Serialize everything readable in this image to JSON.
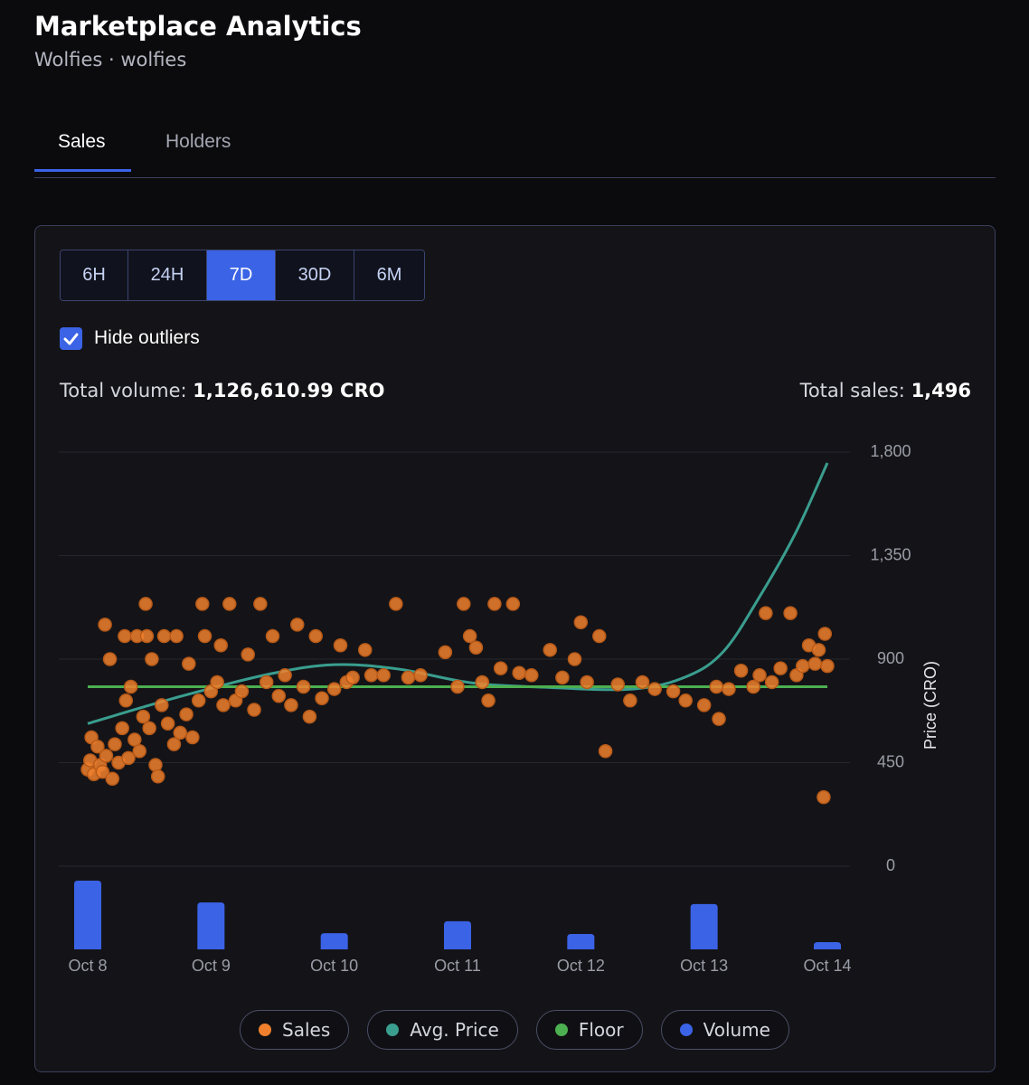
{
  "header": {
    "title": "Marketplace Analytics",
    "subtitle": "Wolfies · wolfies"
  },
  "tabs": {
    "items": [
      "Sales",
      "Holders"
    ],
    "selected": 0
  },
  "periods": {
    "items": [
      "6H",
      "24H",
      "7D",
      "30D",
      "6M"
    ],
    "selected": 2
  },
  "filter": {
    "label": "Hide outliers",
    "checked": true
  },
  "totals": {
    "volume_label": "Total volume:",
    "volume_value": "1,126,610.99 CRO",
    "sales_label": "Total sales:",
    "sales_value": "1,496"
  },
  "chart_data": {
    "type": "scatter",
    "y_label": "Price (CRO)",
    "xlim": [
      8,
      14
    ],
    "xticks": [
      {
        "value": 8,
        "label": "Oct 8"
      },
      {
        "value": 9,
        "label": "Oct 9"
      },
      {
        "value": 10,
        "label": "Oct 10"
      },
      {
        "value": 11,
        "label": "Oct 11"
      },
      {
        "value": 12,
        "label": "Oct 12"
      },
      {
        "value": 13,
        "label": "Oct 13"
      },
      {
        "value": 14,
        "label": "Oct 14"
      }
    ],
    "ylim": [
      0,
      1800
    ],
    "yticks": [
      0,
      450,
      900,
      {
        "value": 1350,
        "label": "1,350"
      },
      {
        "value": 1800,
        "label": "1,800"
      }
    ],
    "grid": true,
    "series": [
      {
        "name": "Sales",
        "type": "scatter",
        "color": "#f0802e",
        "x": [
          8,
          8.02,
          8.03,
          8.05,
          8.08,
          8.1,
          8.12,
          8.14,
          8.15,
          8.18,
          8.2,
          8.22,
          8.25,
          8.28,
          8.3,
          8.31,
          8.33,
          8.35,
          8.38,
          8.4,
          8.42,
          8.45,
          8.47,
          8.48,
          8.5,
          8.52,
          8.55,
          8.57,
          8.6,
          8.62,
          8.65,
          8.7,
          8.72,
          8.75,
          8.8,
          8.82,
          8.85,
          8.9,
          8.93,
          8.95,
          9,
          9.05,
          9.08,
          9.1,
          9.15,
          9.2,
          9.25,
          9.3,
          9.35,
          9.4,
          9.45,
          9.5,
          9.55,
          9.6,
          9.65,
          9.7,
          9.75,
          9.8,
          9.85,
          9.9,
          10,
          10.05,
          10.1,
          10.15,
          10.25,
          10.3,
          10.4,
          10.5,
          10.6,
          10.7,
          10.9,
          11,
          11.05,
          11.1,
          11.15,
          11.2,
          11.25,
          11.3,
          11.35,
          11.45,
          11.5,
          11.6,
          11.75,
          11.85,
          11.95,
          12,
          12.05,
          12.15,
          12.2,
          12.3,
          12.4,
          12.5,
          12.6,
          12.75,
          12.85,
          13,
          13.1,
          13.12,
          13.2,
          13.3,
          13.4,
          13.45,
          13.5,
          13.55,
          13.62,
          13.7,
          13.75,
          13.8,
          13.85,
          13.9,
          13.93,
          13.97,
          13.98,
          14
        ],
        "values": [
          420,
          460,
          560,
          400,
          520,
          440,
          410,
          1050,
          480,
          900,
          380,
          530,
          450,
          600,
          1000,
          720,
          470,
          780,
          550,
          1000,
          500,
          650,
          1140,
          1000,
          600,
          900,
          440,
          390,
          700,
          1000,
          620,
          530,
          1000,
          580,
          660,
          880,
          560,
          720,
          1140,
          1000,
          760,
          800,
          960,
          700,
          1140,
          720,
          760,
          920,
          680,
          1140,
          800,
          1000,
          740,
          830,
          700,
          1050,
          780,
          650,
          1000,
          730,
          770,
          960,
          800,
          820,
          940,
          830,
          830,
          1140,
          820,
          830,
          930,
          780,
          1140,
          1000,
          950,
          800,
          720,
          1140,
          860,
          1140,
          840,
          830,
          940,
          820,
          900,
          1060,
          800,
          1000,
          500,
          790,
          720,
          800,
          770,
          760,
          720,
          700,
          780,
          640,
          770,
          850,
          780,
          830,
          1100,
          800,
          860,
          1100,
          830,
          870,
          960,
          880,
          940,
          300,
          1010,
          870
        ]
      },
      {
        "name": "Avg. Price",
        "type": "line",
        "color": "#3a9e8f",
        "x": [
          8,
          8.76,
          9.49,
          10,
          10.52,
          11.1,
          11.69,
          12.42,
          12.86,
          13.16,
          13.45,
          13.74,
          14
        ],
        "values": [
          620,
          739,
          837,
          876,
          857,
          798,
          778,
          770,
          825,
          935,
          1171,
          1446,
          1753
        ]
      },
      {
        "name": "Floor",
        "type": "line",
        "color": "#4caf50",
        "x": [
          8,
          14
        ],
        "values": [
          780,
          780
        ]
      },
      {
        "name": "Volume",
        "type": "bar",
        "color": "#3b63e6",
        "x": [
          8,
          9,
          10,
          11,
          12,
          13,
          14
        ],
        "values": [
          340000,
          232000,
          80000,
          139000,
          76000,
          224000,
          36000
        ]
      }
    ]
  }
}
